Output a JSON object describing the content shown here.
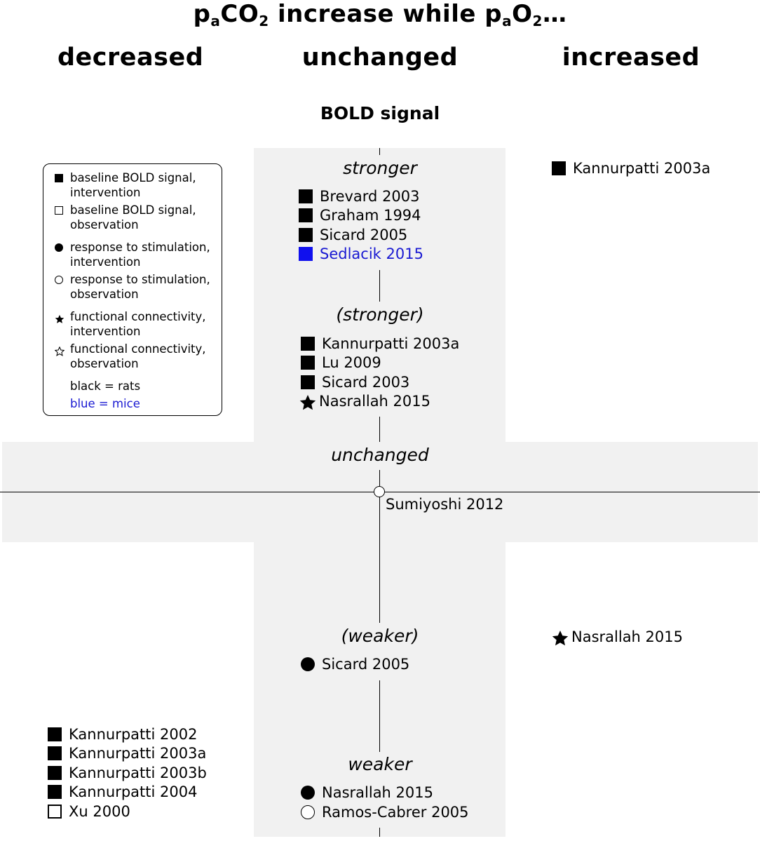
{
  "title": {
    "prefix": "p",
    "sub1": "a",
    "mid": "CO",
    "sub2": "2",
    "text2": " increase while p",
    "sub3": "a",
    "text3": "O",
    "sub4": "2",
    "suffix": "…"
  },
  "columns": {
    "left": "decreased",
    "center": "unchanged",
    "right": "increased"
  },
  "subtitle": "BOLD signal",
  "categories": {
    "stronger": "stronger",
    "stronger_paren": "(stronger)",
    "unchanged": "unchanged",
    "weaker_paren": "(weaker)",
    "weaker": "weaker"
  },
  "legend": {
    "items": [
      {
        "line1": "baseline BOLD signal,",
        "line2": "intervention",
        "marker": "filled-square"
      },
      {
        "line1": "baseline BOLD signal,",
        "line2": "observation",
        "marker": "open-square"
      },
      {
        "line1": "response to stimulation,",
        "line2": "intervention",
        "marker": "filled-circle"
      },
      {
        "line1": "response to stimulation,",
        "line2": "observation",
        "marker": "open-circle"
      },
      {
        "line1": "functional connectivity,",
        "line2": "intervention",
        "marker": "filled-star"
      },
      {
        "line1": "functional connectivity,",
        "line2": "observation",
        "marker": "open-star"
      }
    ],
    "black_note": "black = rats",
    "blue_note": "blue = mice",
    "blue_color": "#1a1ad2"
  },
  "groups": {
    "stronger": [
      {
        "label": "Brevard 2003",
        "marker": "filled-square"
      },
      {
        "label": "Graham 1994",
        "marker": "filled-square"
      },
      {
        "label": "Sicard 2005",
        "marker": "filled-square"
      },
      {
        "label": "Sedlacik 2015",
        "marker": "filled-square",
        "color": "blue"
      }
    ],
    "stronger_paren": [
      {
        "label": "Kannurpatti 2003a",
        "marker": "filled-square"
      },
      {
        "label": "Lu 2009",
        "marker": "filled-square"
      },
      {
        "label": "Sicard 2003",
        "marker": "filled-square"
      },
      {
        "label": "Nasrallah 2015",
        "marker": "filled-star"
      }
    ],
    "right_top": [
      {
        "label": "Kannurpatti 2003a",
        "marker": "filled-square"
      }
    ],
    "center_node": {
      "label": "Sumiyoshi 2012",
      "marker": "open-circle"
    },
    "weaker_paren": [
      {
        "label": "Sicard 2005",
        "marker": "filled-circle"
      }
    ],
    "right_bottom": [
      {
        "label": "Nasrallah 2015",
        "marker": "filled-star"
      }
    ],
    "weaker": [
      {
        "label": "Nasrallah 2015",
        "marker": "filled-circle"
      },
      {
        "label": "Ramos-Cabrer 2005",
        "marker": "open-circle"
      }
    ],
    "left_bottom": [
      {
        "label": "Kannurpatti 2002",
        "marker": "filled-square"
      },
      {
        "label": "Kannurpatti 2003a",
        "marker": "filled-square"
      },
      {
        "label": "Kannurpatti 2003b",
        "marker": "filled-square"
      },
      {
        "label": "Kannurpatti 2004",
        "marker": "filled-square"
      },
      {
        "label": "Xu 2000",
        "marker": "open-square"
      }
    ]
  }
}
